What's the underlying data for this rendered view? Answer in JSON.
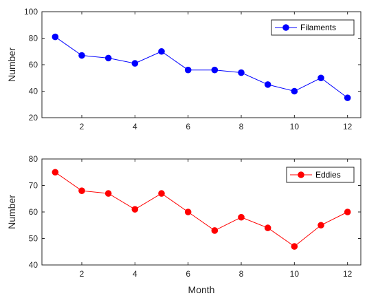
{
  "chart_data": [
    {
      "type": "line",
      "x": [
        1,
        2,
        3,
        4,
        5,
        6,
        7,
        8,
        9,
        10,
        11,
        12
      ],
      "series": [
        {
          "name": "Filaments",
          "values": [
            81,
            67,
            65,
            61,
            70,
            56,
            56,
            54,
            45,
            40,
            50,
            35
          ],
          "color": "#0000ff"
        }
      ],
      "xlabel": "",
      "ylabel": "Number",
      "xlim": [
        0.5,
        12.5
      ],
      "ylim": [
        20,
        100
      ],
      "xticks": [
        2,
        4,
        6,
        8,
        10,
        12
      ],
      "yticks": [
        20,
        40,
        60,
        80,
        100
      ],
      "grid": false,
      "legend_position": "top-right",
      "marker": "circle"
    },
    {
      "type": "line",
      "x": [
        1,
        2,
        3,
        4,
        5,
        6,
        7,
        8,
        9,
        10,
        11,
        12
      ],
      "series": [
        {
          "name": "Eddies",
          "values": [
            75,
            68,
            67,
            61,
            67,
            60,
            53,
            58,
            54,
            47,
            55,
            60
          ],
          "color": "#ff0000"
        }
      ],
      "xlabel": "Month",
      "ylabel": "Number",
      "xlim": [
        0.5,
        12.5
      ],
      "ylim": [
        40,
        80
      ],
      "xticks": [
        2,
        4,
        6,
        8,
        10,
        12
      ],
      "yticks": [
        40,
        50,
        60,
        70,
        80
      ],
      "grid": false,
      "legend_position": "top-right",
      "marker": "circle"
    }
  ]
}
